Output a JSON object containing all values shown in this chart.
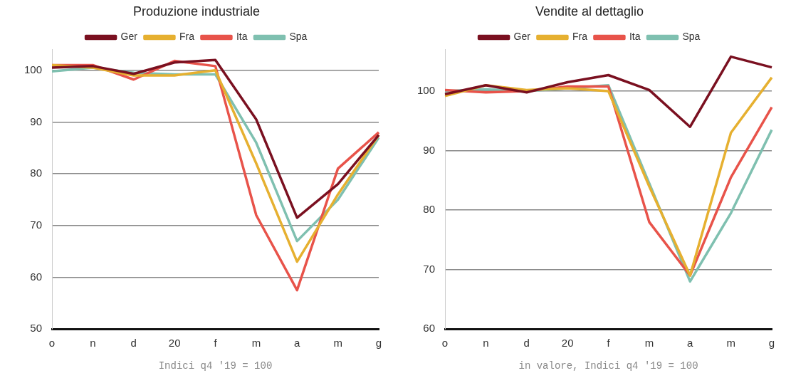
{
  "chart_data": [
    {
      "type": "line",
      "title": "Produzione industriale",
      "xlabel": "Indici q4 '19 = 100",
      "categories": [
        "o",
        "n",
        "d",
        "20",
        "f",
        "m",
        "a",
        "m",
        "g"
      ],
      "ylim": [
        50,
        104
      ],
      "yticks": [
        50,
        60,
        70,
        80,
        90,
        100
      ],
      "grid": "y",
      "legend": "top",
      "marker": "none",
      "line_style": "solid",
      "series": [
        {
          "name": "Ger",
          "color": "#7a1020",
          "values": [
            100.5,
            100.8,
            99.3,
            101.5,
            102,
            90.5,
            71.5,
            78,
            87.5
          ]
        },
        {
          "name": "Fra",
          "color": "#e6b030",
          "values": [
            101,
            100.5,
            99,
            99,
            100,
            82,
            63,
            76,
            87.5
          ]
        },
        {
          "name": "Ita",
          "color": "#e8534a",
          "values": [
            101,
            101,
            98.2,
            101.8,
            100.8,
            72,
            57.5,
            81,
            88
          ]
        },
        {
          "name": "Spa",
          "color": "#7fc0b0",
          "values": [
            99.8,
            100.5,
            99.5,
            99.2,
            99.2,
            86,
            67,
            75,
            87
          ]
        }
      ]
    },
    {
      "type": "line",
      "title": "Vendite al dettaglio",
      "xlabel": "in valore, Indici q4 '19 = 100",
      "categories": [
        "o",
        "n",
        "d",
        "20",
        "f",
        "m",
        "a",
        "m",
        "g"
      ],
      "ylim": [
        60,
        107
      ],
      "yticks": [
        60,
        70,
        80,
        90,
        100
      ],
      "grid": "y",
      "legend": "top",
      "marker": "none",
      "line_style": "solid",
      "series": [
        {
          "name": "Ger",
          "color": "#7a1020",
          "values": [
            99.5,
            101,
            99.8,
            101.5,
            102.7,
            100.2,
            94,
            105.8,
            104
          ]
        },
        {
          "name": "Fra",
          "color": "#e6b030",
          "values": [
            99.2,
            101,
            100.2,
            100.5,
            100,
            84,
            69,
            93,
            102.3
          ]
        },
        {
          "name": "Ita",
          "color": "#e8534a",
          "values": [
            100.2,
            99.8,
            100,
            100.8,
            100.8,
            78,
            69,
            85.5,
            97.3
          ]
        },
        {
          "name": "Spa",
          "color": "#7fc0b0",
          "values": [
            100,
            100.3,
            100,
            100.5,
            101,
            84.5,
            68,
            79.5,
            93.5
          ]
        }
      ]
    }
  ]
}
